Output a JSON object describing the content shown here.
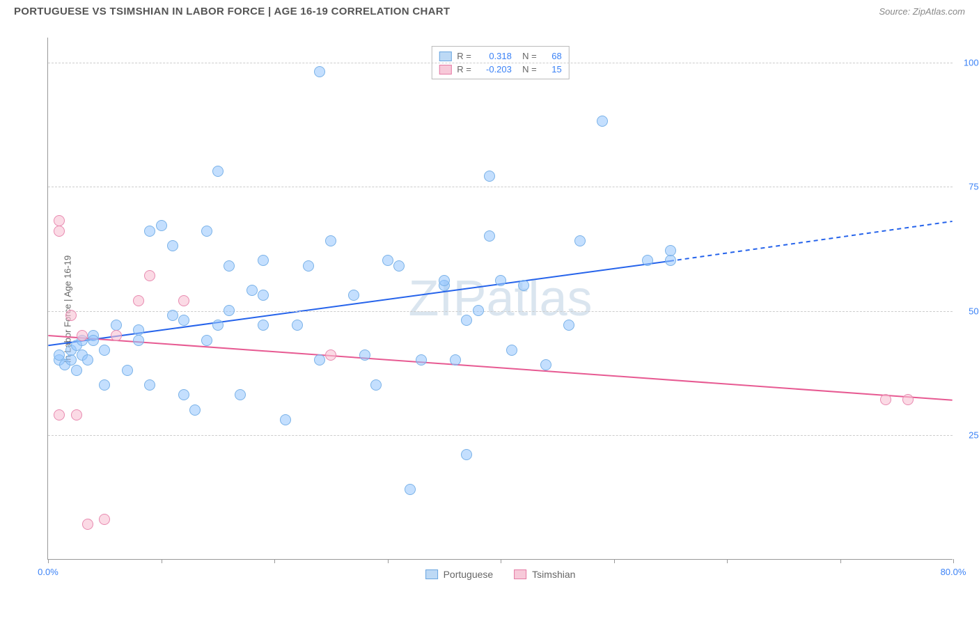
{
  "header": {
    "title": "PORTUGUESE VS TSIMSHIAN IN LABOR FORCE | AGE 16-19 CORRELATION CHART",
    "source": "Source: ZipAtlas.com"
  },
  "chart": {
    "type": "scatter",
    "ylabel": "In Labor Force | Age 16-19",
    "watermark": "ZIPatlas",
    "background_color": "#ffffff",
    "grid_color": "#cccccc",
    "axis_color": "#999999",
    "tick_label_color": "#3b82f6",
    "label_color": "#666666",
    "xlim": [
      0,
      80
    ],
    "ylim": [
      0,
      105
    ],
    "xticks": [
      0,
      10,
      20,
      30,
      40,
      50,
      60,
      70,
      80
    ],
    "xtick_labels": {
      "0": "0.0%",
      "80": "80.0%"
    },
    "yticks": [
      25,
      50,
      75,
      100
    ],
    "ytick_labels": {
      "25": "25.0%",
      "50": "50.0%",
      "75": "75.0%",
      "100": "100.0%"
    },
    "marker_radius": 8,
    "marker_stroke_width": 1.5,
    "series": [
      {
        "name": "Portuguese",
        "fill_color": "rgba(147,197,253,0.55)",
        "stroke_color": "#7ab2e8",
        "swatch_fill": "#bdd9f5",
        "swatch_stroke": "#6aa6e0",
        "r_value": "0.318",
        "n_value": "68",
        "trend": {
          "x1": 0,
          "y1": 43,
          "x2": 55,
          "y2": 60,
          "x3": 80,
          "y3": 68,
          "color": "#2563eb",
          "width": 2
        },
        "points": [
          [
            1,
            40
          ],
          [
            1,
            41
          ],
          [
            1.5,
            39
          ],
          [
            2,
            40
          ],
          [
            2,
            42
          ],
          [
            2.5,
            38
          ],
          [
            2.5,
            43
          ],
          [
            3,
            41
          ],
          [
            3,
            44
          ],
          [
            3.5,
            40
          ],
          [
            4,
            45
          ],
          [
            4,
            44
          ],
          [
            5,
            42
          ],
          [
            5,
            35
          ],
          [
            6,
            47
          ],
          [
            7,
            38
          ],
          [
            8,
            44
          ],
          [
            8,
            46
          ],
          [
            9,
            35
          ],
          [
            9,
            66
          ],
          [
            10,
            67
          ],
          [
            11,
            63
          ],
          [
            11,
            49
          ],
          [
            12,
            48
          ],
          [
            12,
            33
          ],
          [
            13,
            30
          ],
          [
            14,
            44
          ],
          [
            14,
            66
          ],
          [
            15,
            47
          ],
          [
            15,
            78
          ],
          [
            16,
            50
          ],
          [
            16,
            59
          ],
          [
            17,
            33
          ],
          [
            18,
            54
          ],
          [
            19,
            53
          ],
          [
            19,
            47
          ],
          [
            19,
            60
          ],
          [
            21,
            28
          ],
          [
            22,
            47
          ],
          [
            23,
            59
          ],
          [
            24,
            40
          ],
          [
            24,
            98
          ],
          [
            25,
            64
          ],
          [
            27,
            53
          ],
          [
            28,
            41
          ],
          [
            29,
            35
          ],
          [
            30,
            60
          ],
          [
            31,
            59
          ],
          [
            32,
            14
          ],
          [
            33,
            40
          ],
          [
            35,
            55
          ],
          [
            35,
            56
          ],
          [
            36,
            40
          ],
          [
            37,
            48
          ],
          [
            37,
            21
          ],
          [
            38,
            50
          ],
          [
            39,
            65
          ],
          [
            39,
            77
          ],
          [
            40,
            56
          ],
          [
            41,
            42
          ],
          [
            42,
            55
          ],
          [
            44,
            39
          ],
          [
            46,
            47
          ],
          [
            47,
            64
          ],
          [
            49,
            88
          ],
          [
            53,
            60
          ],
          [
            55,
            60
          ],
          [
            55,
            62
          ]
        ]
      },
      {
        "name": "Tsimshian",
        "fill_color": "rgba(249,193,211,0.6)",
        "stroke_color": "#e88ab0",
        "swatch_fill": "#f7c9d9",
        "swatch_stroke": "#e57ba5",
        "r_value": "-0.203",
        "n_value": "15",
        "trend": {
          "x1": 0,
          "y1": 45,
          "x2": 80,
          "y2": 32,
          "color": "#e75a92",
          "width": 2
        },
        "points": [
          [
            1,
            29
          ],
          [
            1,
            66
          ],
          [
            1,
            68
          ],
          [
            2,
            49
          ],
          [
            2.5,
            29
          ],
          [
            3,
            45
          ],
          [
            3.5,
            7
          ],
          [
            5,
            8
          ],
          [
            6,
            45
          ],
          [
            8,
            52
          ],
          [
            9,
            57
          ],
          [
            12,
            52
          ],
          [
            25,
            41
          ],
          [
            74,
            32
          ],
          [
            76,
            32
          ]
        ]
      }
    ],
    "legend_bottom": [
      {
        "label": "Portuguese",
        "fill": "#bdd9f5",
        "stroke": "#6aa6e0"
      },
      {
        "label": "Tsimshian",
        "fill": "#f7c9d9",
        "stroke": "#e57ba5"
      }
    ]
  }
}
